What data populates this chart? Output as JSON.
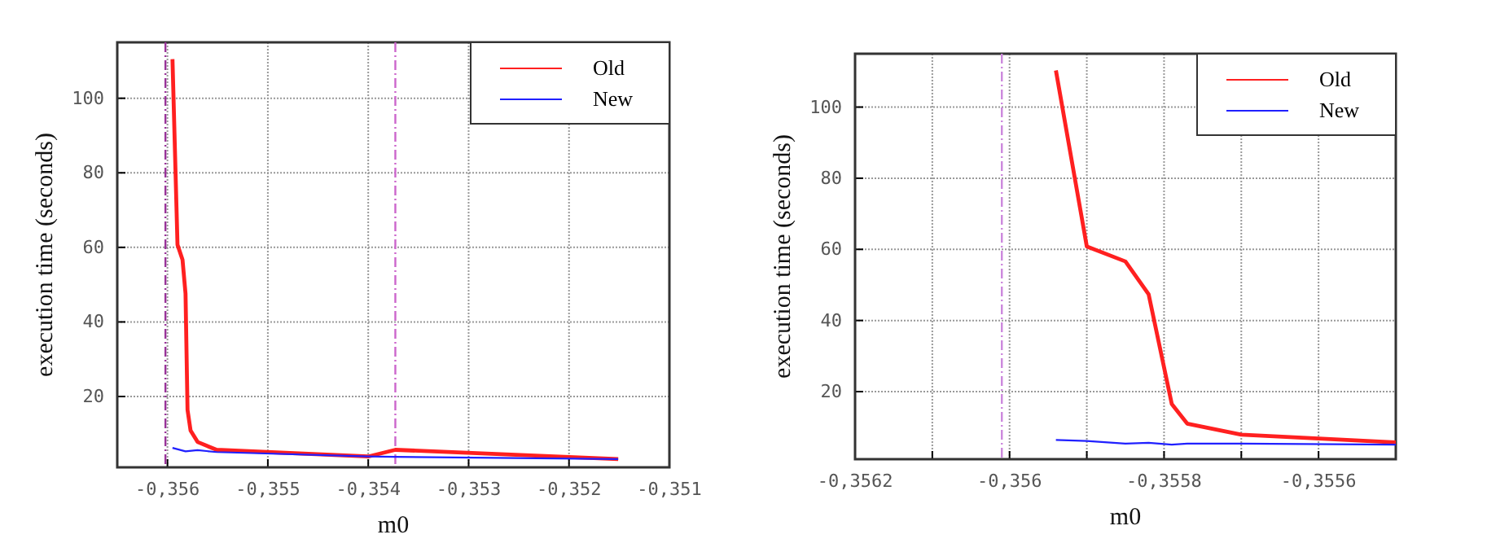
{
  "chart_data": [
    {
      "type": "line",
      "xlabel": "m0",
      "ylabel": "execution time (seconds)",
      "xlim": [
        -0.3565,
        -0.351
      ],
      "xticks": [
        {
          "value": -0.356,
          "label": "-0,356"
        },
        {
          "value": -0.355,
          "label": "-0,355"
        },
        {
          "value": -0.354,
          "label": "-0,354"
        },
        {
          "value": -0.353,
          "label": "-0,353"
        },
        {
          "value": -0.352,
          "label": "-0,352"
        },
        {
          "value": -0.351,
          "label": "-0,351"
        }
      ],
      "ylim": [
        1,
        115
      ],
      "yticks": [
        20,
        40,
        60,
        80,
        100
      ],
      "grid": true,
      "legend": "top right",
      "marker": "none",
      "line_style": "solid",
      "series": [
        {
          "name": "Old",
          "color": "#ff2020",
          "x": [
            -0.35595,
            -0.3559,
            -0.35585,
            -0.35582,
            -0.3558,
            -0.35577,
            -0.3557,
            -0.35551,
            -0.354,
            -0.35373,
            -0.35151
          ],
          "values": [
            110.5,
            60.7,
            56.7,
            47.6,
            16.4,
            10.9,
            7.8,
            5.7,
            3.9,
            5.7,
            3.2
          ]
        },
        {
          "name": "New",
          "color": "#2020ff",
          "x": [
            -0.35595,
            -0.35582,
            -0.3557,
            -0.35551,
            -0.354,
            -0.35373,
            -0.35151
          ],
          "values": [
            6.2,
            5.3,
            5.6,
            5.1,
            3.9,
            3.8,
            3.2
          ]
        }
      ],
      "ref_lines": [
        {
          "axis": "x",
          "value": -0.35602,
          "color": "#993399",
          "line_style": "dashed"
        },
        {
          "axis": "x",
          "value": -0.35373,
          "color": "#cc66cc",
          "line_style": "dashed"
        }
      ]
    },
    {
      "type": "line",
      "xlabel": "m0",
      "ylabel": "execution time (seconds)",
      "xlim": [
        -0.3562,
        -0.3555
      ],
      "xticks": [
        {
          "value": -0.3562,
          "label": "-0,3562"
        },
        {
          "value": -0.3561,
          "label": null
        },
        {
          "value": -0.356,
          "label": "-0,356"
        },
        {
          "value": -0.3559,
          "label": null
        },
        {
          "value": -0.3558,
          "label": "-0,3558"
        },
        {
          "value": -0.3557,
          "label": null
        },
        {
          "value": -0.3556,
          "label": "-0,3556"
        }
      ],
      "ylim": [
        1,
        115
      ],
      "yticks": [
        20,
        40,
        60,
        80,
        100
      ],
      "grid": true,
      "legend": "top right",
      "marker": "none",
      "line_style": "solid",
      "series": [
        {
          "name": "Old",
          "color": "#ff2020",
          "x": [
            -0.35594,
            -0.3559,
            -0.35585,
            -0.35582,
            -0.35579,
            -0.35577,
            -0.3557,
            -0.3555
          ],
          "values": [
            110.3,
            60.8,
            56.6,
            47.4,
            16.5,
            11.0,
            7.9,
            5.7
          ]
        },
        {
          "name": "New",
          "color": "#2020ff",
          "x": [
            -0.35594,
            -0.3559,
            -0.35585,
            -0.35582,
            -0.35579,
            -0.35577,
            -0.3557,
            -0.3555
          ],
          "values": [
            6.4,
            6.1,
            5.4,
            5.6,
            5.1,
            5.4,
            5.4,
            5.1
          ]
        }
      ],
      "ref_lines": [
        {
          "axis": "x",
          "value": -0.35601,
          "color": "#cc88dd",
          "line_style": "dashed"
        }
      ]
    }
  ]
}
